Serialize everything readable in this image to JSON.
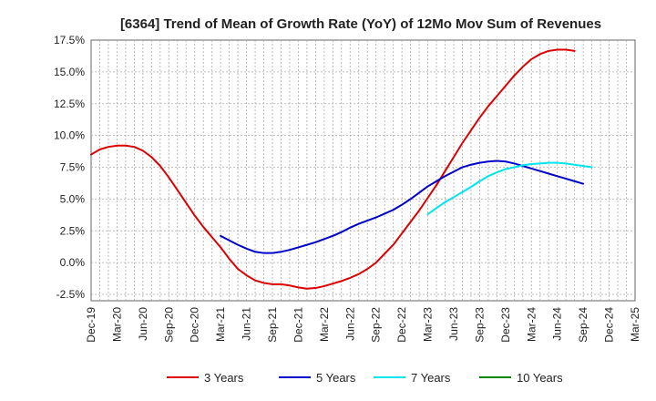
{
  "chart_data": {
    "type": "line",
    "title": "[6364]  Trend of Mean of Growth Rate (YoY) of 12Mo Mov Sum of Revenues",
    "xlabel": "",
    "ylabel": "",
    "ylim": [
      -3.0,
      17.5
    ],
    "y_ticks": [
      {
        "value": 17.5,
        "label": "17.5%"
      },
      {
        "value": 15.0,
        "label": "15.0%"
      },
      {
        "value": 12.5,
        "label": "12.5%"
      },
      {
        "value": 10.0,
        "label": "10.0%"
      },
      {
        "value": 7.5,
        "label": "7.5%"
      },
      {
        "value": 5.0,
        "label": "5.0%"
      },
      {
        "value": 2.5,
        "label": "2.5%"
      },
      {
        "value": 0.0,
        "label": "0.0%"
      },
      {
        "value": -2.5,
        "label": "-2.5%"
      }
    ],
    "x_ticks": [
      "Dec-19",
      "Mar-20",
      "Jun-20",
      "Sep-20",
      "Dec-20",
      "Mar-21",
      "Jun-21",
      "Sep-21",
      "Dec-21",
      "Mar-22",
      "Jun-22",
      "Sep-22",
      "Dec-22",
      "Mar-23",
      "Jun-23",
      "Sep-23",
      "Dec-23",
      "Mar-24",
      "Jun-24",
      "Sep-24",
      "Dec-24",
      "Mar-25"
    ],
    "grid": true,
    "legend_position": "bottom",
    "series": [
      {
        "name": "3 Years",
        "color": "#dd0000",
        "x_start_index": 0,
        "values": [
          8.5,
          8.9,
          9.1,
          9.2,
          9.2,
          9.1,
          8.8,
          8.3,
          7.6,
          6.7,
          5.7,
          4.7,
          3.7,
          2.8,
          2.0,
          1.2,
          0.3,
          -0.5,
          -1.0,
          -1.4,
          -1.6,
          -1.7,
          -1.7,
          -1.8,
          -1.95,
          -2.05,
          -2.0,
          -1.85,
          -1.65,
          -1.45,
          -1.2,
          -0.9,
          -0.5,
          0.0,
          0.7,
          1.4,
          2.3,
          3.2,
          4.1,
          5.1,
          6.1,
          7.2,
          8.3,
          9.4,
          10.4,
          11.4,
          12.3,
          13.1,
          13.9,
          14.7,
          15.4,
          16.0,
          16.4,
          16.65,
          16.75,
          16.75,
          16.65
        ]
      },
      {
        "name": "5 Years",
        "color": "#0000cc",
        "x_start_index": 15,
        "values": [
          2.1,
          1.75,
          1.4,
          1.1,
          0.85,
          0.75,
          0.75,
          0.85,
          1.0,
          1.2,
          1.4,
          1.6,
          1.85,
          2.1,
          2.4,
          2.75,
          3.05,
          3.3,
          3.55,
          3.85,
          4.15,
          4.55,
          5.0,
          5.5,
          6.0,
          6.4,
          6.8,
          7.15,
          7.5,
          7.7,
          7.85,
          7.95,
          8.0,
          7.95,
          7.8,
          7.6,
          7.4,
          7.2,
          7.0,
          6.8,
          6.6,
          6.4,
          6.2
        ]
      },
      {
        "name": "7 Years",
        "color": "#00e5ee",
        "x_start_index": 39,
        "values": [
          3.8,
          4.3,
          4.75,
          5.15,
          5.55,
          5.95,
          6.4,
          6.8,
          7.1,
          7.35,
          7.5,
          7.65,
          7.75,
          7.8,
          7.85,
          7.85,
          7.8,
          7.7,
          7.6,
          7.5
        ]
      },
      {
        "name": "10 Years",
        "color": "#008800",
        "x_start_index": 0,
        "values": []
      }
    ]
  }
}
